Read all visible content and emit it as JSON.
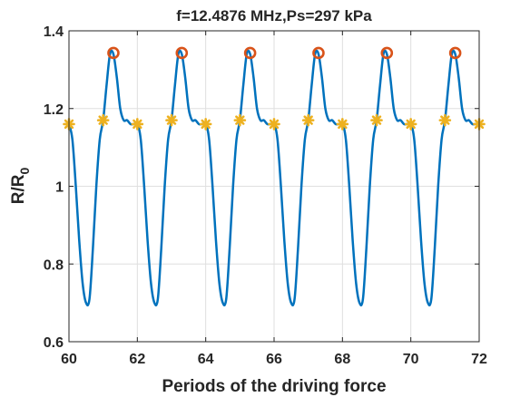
{
  "chart_data": {
    "type": "line",
    "title": "f=12.4876 MHz,Ps=297 kPa",
    "xlabel": "Periods of the driving force",
    "ylabel": "R/R",
    "ylabel_subscript": "0",
    "xlim": [
      60,
      72
    ],
    "ylim": [
      0.6,
      1.4
    ],
    "xticks": [
      60,
      62,
      64,
      66,
      68,
      70,
      72
    ],
    "yticks": [
      0.6,
      0.8,
      1.0,
      1.2,
      1.4
    ],
    "xtick_labels": [
      "60",
      "62",
      "64",
      "66",
      "68",
      "70",
      "72"
    ],
    "ytick_labels": [
      "0.6",
      "0.8",
      "1",
      "1.2",
      "1.4"
    ],
    "grid": true,
    "series": [
      {
        "color": "#0072BD",
        "x": [
          60.0,
          60.1,
          60.2,
          60.3,
          60.4,
          60.5,
          60.6,
          60.7,
          60.8,
          60.9,
          61.0,
          61.1,
          61.2,
          61.3,
          61.4,
          61.5,
          61.6,
          61.7,
          61.8,
          61.9,
          62.0,
          62.1,
          62.2,
          62.3,
          62.4,
          62.5,
          62.6,
          62.7,
          62.8,
          62.9,
          63.0,
          63.1,
          63.2,
          63.3,
          63.4,
          63.5,
          63.6,
          63.7,
          63.8,
          63.9,
          64.0,
          64.1,
          64.2,
          64.3,
          64.4,
          64.5,
          64.6,
          64.7,
          64.8,
          64.9,
          65.0,
          65.1,
          65.2,
          65.3,
          65.4,
          65.5,
          65.6,
          65.7,
          65.8,
          65.9,
          66.0,
          66.1,
          66.2,
          66.3,
          66.4,
          66.5,
          66.6,
          66.7,
          66.8,
          66.9,
          67.0,
          67.1,
          67.2,
          67.3,
          67.4,
          67.5,
          67.6,
          67.7,
          67.8,
          67.9,
          68.0,
          68.1,
          68.2,
          68.3,
          68.4,
          68.5,
          68.6,
          68.7,
          68.8,
          68.9,
          69.0,
          69.1,
          69.2,
          69.3,
          69.4,
          69.5,
          69.6,
          69.7,
          69.8,
          69.9,
          70.0,
          70.1,
          70.2,
          70.3,
          70.4,
          70.5,
          70.6,
          70.7,
          70.8,
          70.9,
          71.0,
          71.1,
          71.2,
          71.3,
          71.4,
          71.5,
          71.6,
          71.7,
          71.8,
          71.9,
          72.0
        ],
        "y": [
          1.16,
          1.12,
          1.0,
          0.86,
          0.75,
          0.7,
          0.71,
          0.84,
          1.0,
          1.12,
          1.17,
          1.26,
          1.34,
          1.34,
          1.28,
          1.2,
          1.17,
          1.17,
          1.16,
          1.16,
          1.16,
          1.12,
          1.0,
          0.86,
          0.75,
          0.7,
          0.71,
          0.84,
          1.0,
          1.12,
          1.17,
          1.26,
          1.34,
          1.34,
          1.28,
          1.2,
          1.17,
          1.17,
          1.16,
          1.16,
          1.16,
          1.12,
          1.0,
          0.86,
          0.75,
          0.7,
          0.71,
          0.84,
          1.0,
          1.12,
          1.17,
          1.26,
          1.34,
          1.34,
          1.28,
          1.2,
          1.17,
          1.17,
          1.16,
          1.16,
          1.16,
          1.12,
          1.0,
          0.86,
          0.75,
          0.7,
          0.71,
          0.84,
          1.0,
          1.12,
          1.17,
          1.26,
          1.34,
          1.34,
          1.28,
          1.2,
          1.17,
          1.17,
          1.16,
          1.16,
          1.16,
          1.12,
          1.0,
          0.86,
          0.75,
          0.7,
          0.71,
          0.84,
          1.0,
          1.12,
          1.17,
          1.26,
          1.34,
          1.34,
          1.28,
          1.2,
          1.17,
          1.17,
          1.16,
          1.16,
          1.16,
          1.12,
          1.0,
          0.86,
          0.75,
          0.7,
          0.71,
          0.84,
          1.0,
          1.12,
          1.17,
          1.26,
          1.34,
          1.34,
          1.28,
          1.2,
          1.17,
          1.17,
          1.16,
          1.16,
          1.16
        ]
      }
    ],
    "max_markers": {
      "marker": "circle",
      "color": "#D95319",
      "x": [
        61.3,
        63.3,
        65.3,
        67.3,
        69.3,
        71.3
      ],
      "y": [
        1.343,
        1.343,
        1.343,
        1.343,
        1.343,
        1.343
      ]
    },
    "cross_markers": {
      "marker": "asterisk",
      "color": "#EDB120",
      "x": [
        60.0,
        61.0,
        62.0,
        63.0,
        64.0,
        65.0,
        66.0,
        67.0,
        68.0,
        69.0,
        70.0,
        71.0,
        72.0
      ],
      "y": [
        1.16,
        1.17,
        1.16,
        1.17,
        1.16,
        1.17,
        1.16,
        1.17,
        1.16,
        1.17,
        1.16,
        1.17,
        1.16
      ]
    }
  }
}
